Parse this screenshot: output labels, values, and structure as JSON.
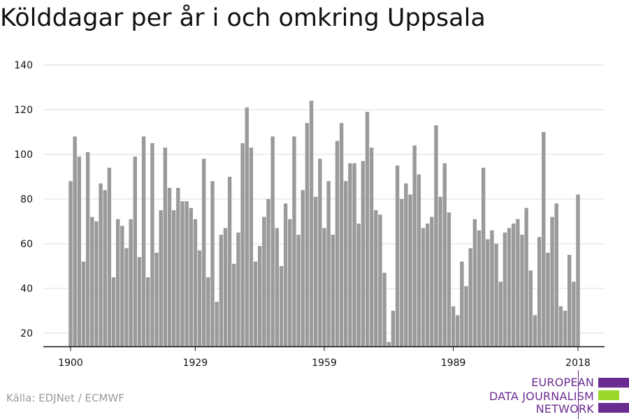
{
  "title": "Kölddagar per år i och omkring Uppsala",
  "source": "Källa: EDJNet / ECMWF",
  "logo": {
    "lines": [
      "EUROPEAN",
      "DATA JOURNALISM",
      "NETWORK"
    ],
    "colors": {
      "purple": "#6b2c91",
      "green": "#9bd62a"
    }
  },
  "colors": {
    "bar": "#9a9a9a",
    "grid": "#dddddd",
    "axis": "#111111"
  },
  "chart_data": {
    "type": "bar",
    "title": "Kölddagar per år i och omkring Uppsala",
    "xlabel": "",
    "ylabel": "",
    "x_start": 1900,
    "x_end": 2018,
    "xticks": [
      1900,
      1929,
      1959,
      1989,
      2018
    ],
    "yticks": [
      20,
      40,
      60,
      80,
      100,
      120,
      140
    ],
    "ylim": [
      13,
      140
    ],
    "grid": true,
    "values": [
      88,
      108,
      99,
      52,
      101,
      72,
      70,
      87,
      84,
      94,
      45,
      71,
      68,
      58,
      71,
      99,
      54,
      108,
      45,
      105,
      56,
      75,
      103,
      85,
      75,
      85,
      79,
      79,
      76,
      71,
      57,
      98,
      45,
      88,
      34,
      64,
      67,
      90,
      51,
      65,
      105,
      121,
      103,
      52,
      59,
      72,
      80,
      108,
      67,
      50,
      78,
      71,
      108,
      64,
      84,
      114,
      124,
      81,
      98,
      67,
      88,
      64,
      106,
      114,
      88,
      96,
      96,
      69,
      97,
      119,
      103,
      75,
      73,
      47,
      16,
      30,
      95,
      80,
      87,
      82,
      104,
      91,
      67,
      69,
      72,
      113,
      81,
      96,
      74,
      32,
      28,
      52,
      41,
      58,
      71,
      66,
      94,
      62,
      66,
      60,
      43,
      65,
      67,
      69,
      71,
      64,
      76,
      48,
      28,
      63,
      110,
      56,
      72,
      78,
      32,
      30,
      55,
      43,
      82
    ]
  }
}
